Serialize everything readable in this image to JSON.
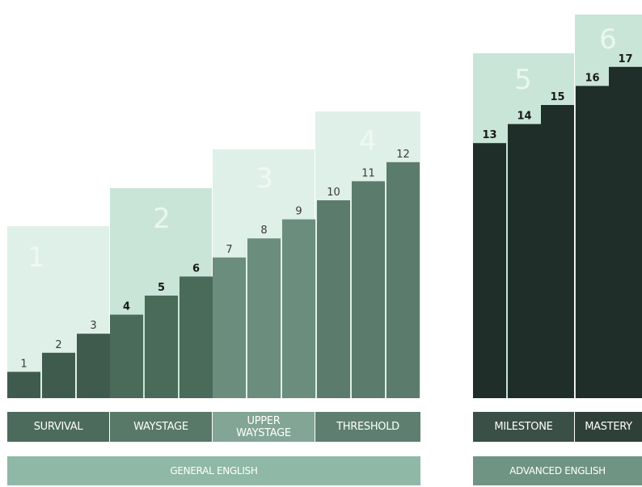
{
  "bands": [
    {
      "numeral": "1",
      "label": "SURVIVAL"
    },
    {
      "numeral": "2",
      "label": "WAYSTAGE"
    },
    {
      "numeral": "3",
      "label": "UPPER WAYSTAGE"
    },
    {
      "numeral": "4",
      "label": "THRESHOLD"
    },
    {
      "numeral": "5",
      "label": "MILESTONE"
    },
    {
      "numeral": "6",
      "label": "MASTERY"
    }
  ],
  "footer": {
    "general": "GENERAL ENGLISH",
    "advanced": "ADVANCED ENGLISH"
  },
  "chart_data": {
    "type": "bar",
    "categories": [
      "1",
      "2",
      "3",
      "4",
      "5",
      "6",
      "7",
      "8",
      "9",
      "10",
      "11",
      "12",
      "13",
      "14",
      "15",
      "16",
      "17"
    ],
    "values": [
      1,
      2,
      3,
      4,
      5,
      6,
      7,
      8,
      9,
      10,
      11,
      12,
      13,
      14,
      15,
      16,
      17
    ],
    "stage_of_step": [
      1,
      1,
      1,
      2,
      2,
      2,
      3,
      3,
      3,
      4,
      4,
      4,
      5,
      5,
      5,
      6,
      6
    ],
    "colors": {
      "general_bar": "#4f6f5f",
      "advanced_bar": "#1f2e28",
      "band_bg_light": "#dff0e8",
      "band_bg_mid": "#c8e5d8",
      "numeral_faint": "#f2faf6",
      "label_bar": "#5e7f70",
      "advanced_label_bar": "#3a4f46",
      "footer_bar": "#8fb8a6"
    }
  }
}
